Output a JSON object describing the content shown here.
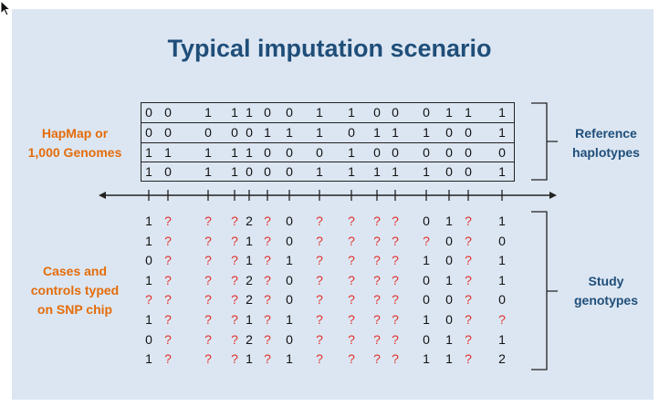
{
  "title": "Typical imputation scenario",
  "labels": {
    "reference_source": [
      "HapMap or",
      "1,000 Genomes"
    ],
    "reference_haplotypes": [
      "Reference",
      "haplotypes"
    ],
    "cases_controls": [
      "Cases and",
      "controls typed",
      "on SNP chip"
    ],
    "study_genotypes": [
      "Study",
      "genotypes"
    ]
  },
  "reference_haplotypes": [
    [
      "0",
      "0",
      "1",
      "1",
      "1",
      "0",
      "0",
      "1",
      "1",
      "0",
      "0",
      "0",
      "1",
      "1",
      "1"
    ],
    [
      "0",
      "0",
      "0",
      "0",
      "0",
      "1",
      "1",
      "1",
      "0",
      "1",
      "1",
      "1",
      "0",
      "0",
      "1"
    ],
    [
      "1",
      "1",
      "1",
      "1",
      "1",
      "0",
      "0",
      "0",
      "1",
      "0",
      "0",
      "0",
      "0",
      "0",
      "0"
    ],
    [
      "1",
      "0",
      "1",
      "1",
      "0",
      "0",
      "0",
      "1",
      "1",
      "1",
      "1",
      "1",
      "0",
      "0",
      "1"
    ]
  ],
  "study_genotypes": [
    [
      "1",
      "?",
      "?",
      "?",
      "2",
      "?",
      "0",
      "?",
      "?",
      "?",
      "?",
      "0",
      "1",
      "?",
      "1"
    ],
    [
      "1",
      "?",
      "?",
      "?",
      "1",
      "?",
      "0",
      "?",
      "?",
      "?",
      "?",
      "?",
      "0",
      "?",
      "0"
    ],
    [
      "0",
      "?",
      "?",
      "?",
      "1",
      "?",
      "1",
      "?",
      "?",
      "?",
      "?",
      "1",
      "0",
      "?",
      "1"
    ],
    [
      "1",
      "?",
      "?",
      "?",
      "2",
      "?",
      "0",
      "?",
      "?",
      "?",
      "?",
      "0",
      "1",
      "?",
      "1"
    ],
    [
      "?",
      "?",
      "?",
      "?",
      "2",
      "?",
      "0",
      "?",
      "?",
      "?",
      "?",
      "0",
      "0",
      "?",
      "0"
    ],
    [
      "1",
      "?",
      "?",
      "?",
      "1",
      "?",
      "1",
      "?",
      "?",
      "?",
      "?",
      "1",
      "0",
      "?",
      "?"
    ],
    [
      "0",
      "?",
      "?",
      "?",
      "2",
      "?",
      "0",
      "?",
      "?",
      "?",
      "?",
      "0",
      "1",
      "?",
      "1"
    ],
    [
      "1",
      "?",
      "?",
      "?",
      "1",
      "?",
      "1",
      "?",
      "?",
      "?",
      "?",
      "1",
      "1",
      "?",
      "2"
    ]
  ],
  "colors": {
    "slide_background": "#dce6f2",
    "title": "#1f4e79",
    "left_labels": "#e46c0a",
    "right_labels": "#1f4e79",
    "missing_genotype": "#e0312b",
    "lines": "#222222"
  }
}
